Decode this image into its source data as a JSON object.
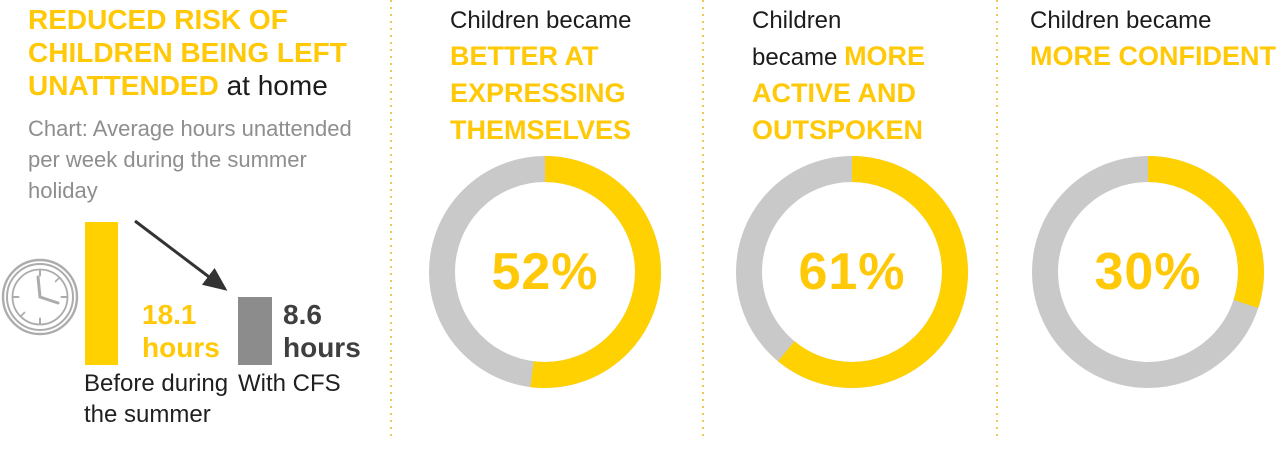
{
  "colors": {
    "accent_yellow": "#FFD100",
    "donut_track_gray": "#C9C9C9",
    "bar_gray": "#8C8C8C",
    "dark_value_text": "#3F3F3F",
    "caption_gray": "#8E8E8E",
    "divider_gold": "#EFC75B",
    "clock_icon_gray": "#ACACAC",
    "arrow_dark": "#333333"
  },
  "panel1": {
    "title_highlight": "REDUCED RISK OF CHILDREN BEING LEFT UNATTENDED",
    "title_rest": " at home",
    "caption": "Chart: Average hours unattended per week during the summer holiday",
    "bar1_value_label": "18.1 hours",
    "bar2_value_label": "8.6 hours",
    "bar1_category": "Before during the summer",
    "bar2_category": "With CFS"
  },
  "donuts": [
    {
      "plain": "Children became ",
      "highlight": "BETTER AT EXPRESSING THEMSELVES",
      "value": 52,
      "percent_label": "52%"
    },
    {
      "plain": "Children became ",
      "highlight": "MORE ACTIVE AND OUTSPOKEN",
      "value": 61,
      "percent_label": "61%"
    },
    {
      "plain": "Children became ",
      "highlight": "MORE CONFIDENT",
      "value": 30,
      "percent_label": "30%"
    }
  ],
  "chart_data": [
    {
      "type": "bar",
      "title": "Chart: Average hours unattended per week during the summer holiday",
      "categories": [
        "Before during the summer",
        "With CFS"
      ],
      "values": [
        18.1,
        8.6
      ],
      "value_labels": [
        "18.1 hours",
        "8.6 hours"
      ],
      "bar_colors": [
        "#FFD100",
        "#8C8C8C"
      ],
      "annotation": "downward arrow from 18.1-hours bar to 8.6-hours bar",
      "icon": "clock"
    },
    {
      "type": "pie",
      "title": "Children became BETTER AT EXPRESSING THEMSELVES",
      "values": [
        52,
        48
      ],
      "center_label": "52%",
      "colors": [
        "#FFD100",
        "#C9C9C9"
      ],
      "style": "donut, filled arc starts at 12 o'clock clockwise"
    },
    {
      "type": "pie",
      "title": "Children became MORE ACTIVE AND OUTSPOKEN",
      "values": [
        61,
        39
      ],
      "center_label": "61%",
      "colors": [
        "#FFD100",
        "#C9C9C9"
      ],
      "style": "donut, filled arc starts at 12 o'clock clockwise"
    },
    {
      "type": "pie",
      "title": "Children became MORE CONFIDENT",
      "values": [
        30,
        70
      ],
      "center_label": "30%",
      "colors": [
        "#FFD100",
        "#C9C9C9"
      ],
      "style": "donut, filled arc starts at 12 o'clock clockwise"
    }
  ]
}
